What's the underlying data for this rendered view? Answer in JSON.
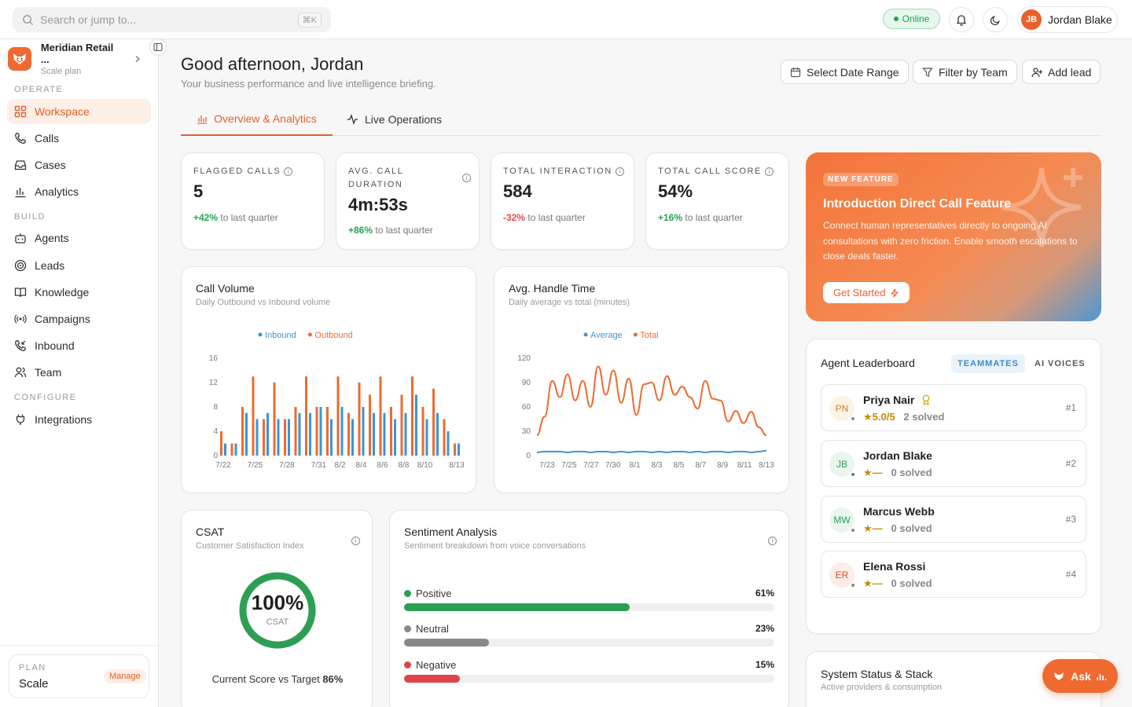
{
  "topbar": {
    "search_placeholder": "Search or jump to...",
    "search_shortcut": "⌘K",
    "status": "Online",
    "user_initials": "JB",
    "user_name": "Jordan Blake"
  },
  "sidebar": {
    "org_name": "Meridian Retail ...",
    "org_plan": "Scale plan",
    "sections": {
      "operate": "OPERATE",
      "build": "BUILD",
      "configure": "CONFIGURE"
    },
    "items": [
      {
        "label": "Workspace",
        "icon": "grid-icon",
        "active": true
      },
      {
        "label": "Calls",
        "icon": "phone-icon"
      },
      {
        "label": "Cases",
        "icon": "inbox-icon"
      },
      {
        "label": "Analytics",
        "icon": "bar-chart-icon"
      },
      {
        "label": "Agents",
        "icon": "robot-icon"
      },
      {
        "label": "Leads",
        "icon": "target-icon"
      },
      {
        "label": "Knowledge",
        "icon": "book-icon"
      },
      {
        "label": "Campaigns",
        "icon": "broadcast-icon"
      },
      {
        "label": "Inbound",
        "icon": "phone-incoming-icon"
      },
      {
        "label": "Team",
        "icon": "users-icon"
      },
      {
        "label": "Integrations",
        "icon": "plug-icon"
      }
    ],
    "plan": {
      "label": "PLAN",
      "value": "Scale",
      "action": "Manage"
    }
  },
  "header": {
    "greeting": "Good afternoon, Jordan",
    "subtitle": "Your business performance and live intelligence briefing.",
    "buttons": {
      "date": "Select Date Range",
      "filter": "Filter by Team",
      "add": "Add lead"
    }
  },
  "tabs": [
    {
      "label": "Overview & Analytics",
      "active": true
    },
    {
      "label": "Live Operations"
    }
  ],
  "kpis": [
    {
      "label": "FLAGGED CALLS",
      "value": "5",
      "delta": "+42%",
      "delta_text": "to last quarter"
    },
    {
      "label": "AVG. CALL DURATION",
      "value": "4m:53s",
      "delta": "+86%",
      "delta_text": "to last quarter"
    },
    {
      "label": "TOTAL INTERACTION",
      "value": "584",
      "delta": "-32%",
      "delta_text": "to last quarter"
    },
    {
      "label": "TOTAL CALL SCORE",
      "value": "54%",
      "delta": "+16%",
      "delta_text": "to last quarter"
    }
  ],
  "promo": {
    "badge": "NEW FEATURE",
    "title": "Introduction Direct Call Feature",
    "description": "Connect human representatives directly to ongoing AI consultations with zero friction. Enable smooth escalations to close deals faster.",
    "cta": "Get Started"
  },
  "chart_data": [
    {
      "type": "bar",
      "title": "Call Volume",
      "subtitle": "Daily Outbound vs Inbound volume",
      "legend_placement": "top",
      "ylim": [
        0,
        16
      ],
      "yticks": [
        0,
        4,
        8,
        12,
        16
      ],
      "xticks": [
        "7/22",
        "7/25",
        "7/28",
        "7/31",
        "8/2",
        "8/4",
        "8/6",
        "8/8",
        "8/10",
        "8/13"
      ],
      "categories": [
        "7/22",
        "7/23",
        "7/24",
        "7/25",
        "7/26",
        "7/27",
        "7/28",
        "7/29",
        "7/30",
        "7/31",
        "8/1",
        "8/2",
        "8/3",
        "8/4",
        "8/5",
        "8/6",
        "8/7",
        "8/8",
        "8/9",
        "8/10",
        "8/11",
        "8/12",
        "8/13"
      ],
      "series": [
        {
          "name": "Inbound",
          "color": "#3d94d4",
          "values": [
            2,
            2,
            7,
            6,
            7,
            6,
            6,
            7,
            7,
            8,
            6,
            8,
            6,
            8,
            7,
            7,
            6,
            7,
            10,
            6,
            7,
            4,
            2
          ]
        },
        {
          "name": "Outbound",
          "color": "#ee6a31",
          "values": [
            4,
            2,
            8,
            13,
            6,
            12,
            6,
            8,
            13,
            8,
            8,
            13,
            7,
            12,
            10,
            13,
            8,
            10,
            13,
            8,
            11,
            6,
            2
          ]
        }
      ]
    },
    {
      "type": "line",
      "title": "Avg. Handle Time",
      "subtitle": "Daily average vs total (minutes)",
      "legend_placement": "top",
      "ylim": [
        0,
        120
      ],
      "yticks": [
        0,
        30,
        60,
        90,
        120
      ],
      "xticks": [
        "7/23",
        "7/25",
        "7/27",
        "7/30",
        "8/1",
        "8/3",
        "8/5",
        "8/7",
        "8/9",
        "8/11",
        "8/13"
      ],
      "series": [
        {
          "name": "Average",
          "color": "#3d94d4",
          "values": [
            4,
            5,
            5,
            5,
            4,
            5,
            5,
            4,
            5,
            5,
            4,
            5,
            4,
            5,
            5,
            4,
            5,
            4,
            5,
            5,
            4,
            5,
            4,
            5,
            5,
            4,
            5,
            5,
            4,
            5,
            6
          ]
        },
        {
          "name": "Total",
          "color": "#ee6a31",
          "values": [
            25,
            48,
            92,
            72,
            100,
            68,
            92,
            60,
            110,
            75,
            105,
            65,
            95,
            50,
            88,
            90,
            68,
            98,
            75,
            85,
            72,
            58,
            92,
            70,
            68,
            42,
            55,
            40,
            54,
            35,
            25
          ]
        }
      ]
    }
  ],
  "csat": {
    "title": "CSAT",
    "subtitle": "Customer Satisfaction Index",
    "value": "100%",
    "value_fraction": 1.0,
    "unit": "CSAT",
    "target_label": "Current Score vs Target",
    "target_value": "86%"
  },
  "sentiment": {
    "title": "Sentiment Analysis",
    "subtitle": "Sentiment breakdown from voice conversations",
    "rows": [
      {
        "label": "Positive",
        "pct": "61%",
        "fraction": 0.61,
        "color": "#2f9e55"
      },
      {
        "label": "Neutral",
        "pct": "23%",
        "fraction": 0.23,
        "color": "#888888"
      },
      {
        "label": "Negative",
        "pct": "15%",
        "fraction": 0.15,
        "color": "#e04348"
      }
    ]
  },
  "leaderboard": {
    "title": "Agent Leaderboard",
    "tabs": [
      "TEAMMATES",
      "AI VOICES"
    ],
    "agents": [
      {
        "initials": "PN",
        "name": "Priya Nair",
        "rating": "5.0/5",
        "solved": "2 solved",
        "rank": "#1",
        "av_bg": "#fdf3e5",
        "av_fg": "#c4872b"
      },
      {
        "initials": "JB",
        "name": "Jordan Blake",
        "rating": "—",
        "solved": "0 solved",
        "rank": "#2",
        "av_bg": "#e8f6ee",
        "av_fg": "#2f9e55"
      },
      {
        "initials": "MW",
        "name": "Marcus Webb",
        "rating": "—",
        "solved": "0 solved",
        "rank": "#3",
        "av_bg": "#e8f6ee",
        "av_fg": "#2f9e55"
      },
      {
        "initials": "ER",
        "name": "Elena Rossi",
        "rating": "—",
        "solved": "0 solved",
        "rank": "#4",
        "av_bg": "#fdece7",
        "av_fg": "#d4522f"
      }
    ]
  },
  "system_status": {
    "title": "System Status & Stack",
    "subtitle": "Active providers & consumption"
  },
  "ask_button": "Ask"
}
